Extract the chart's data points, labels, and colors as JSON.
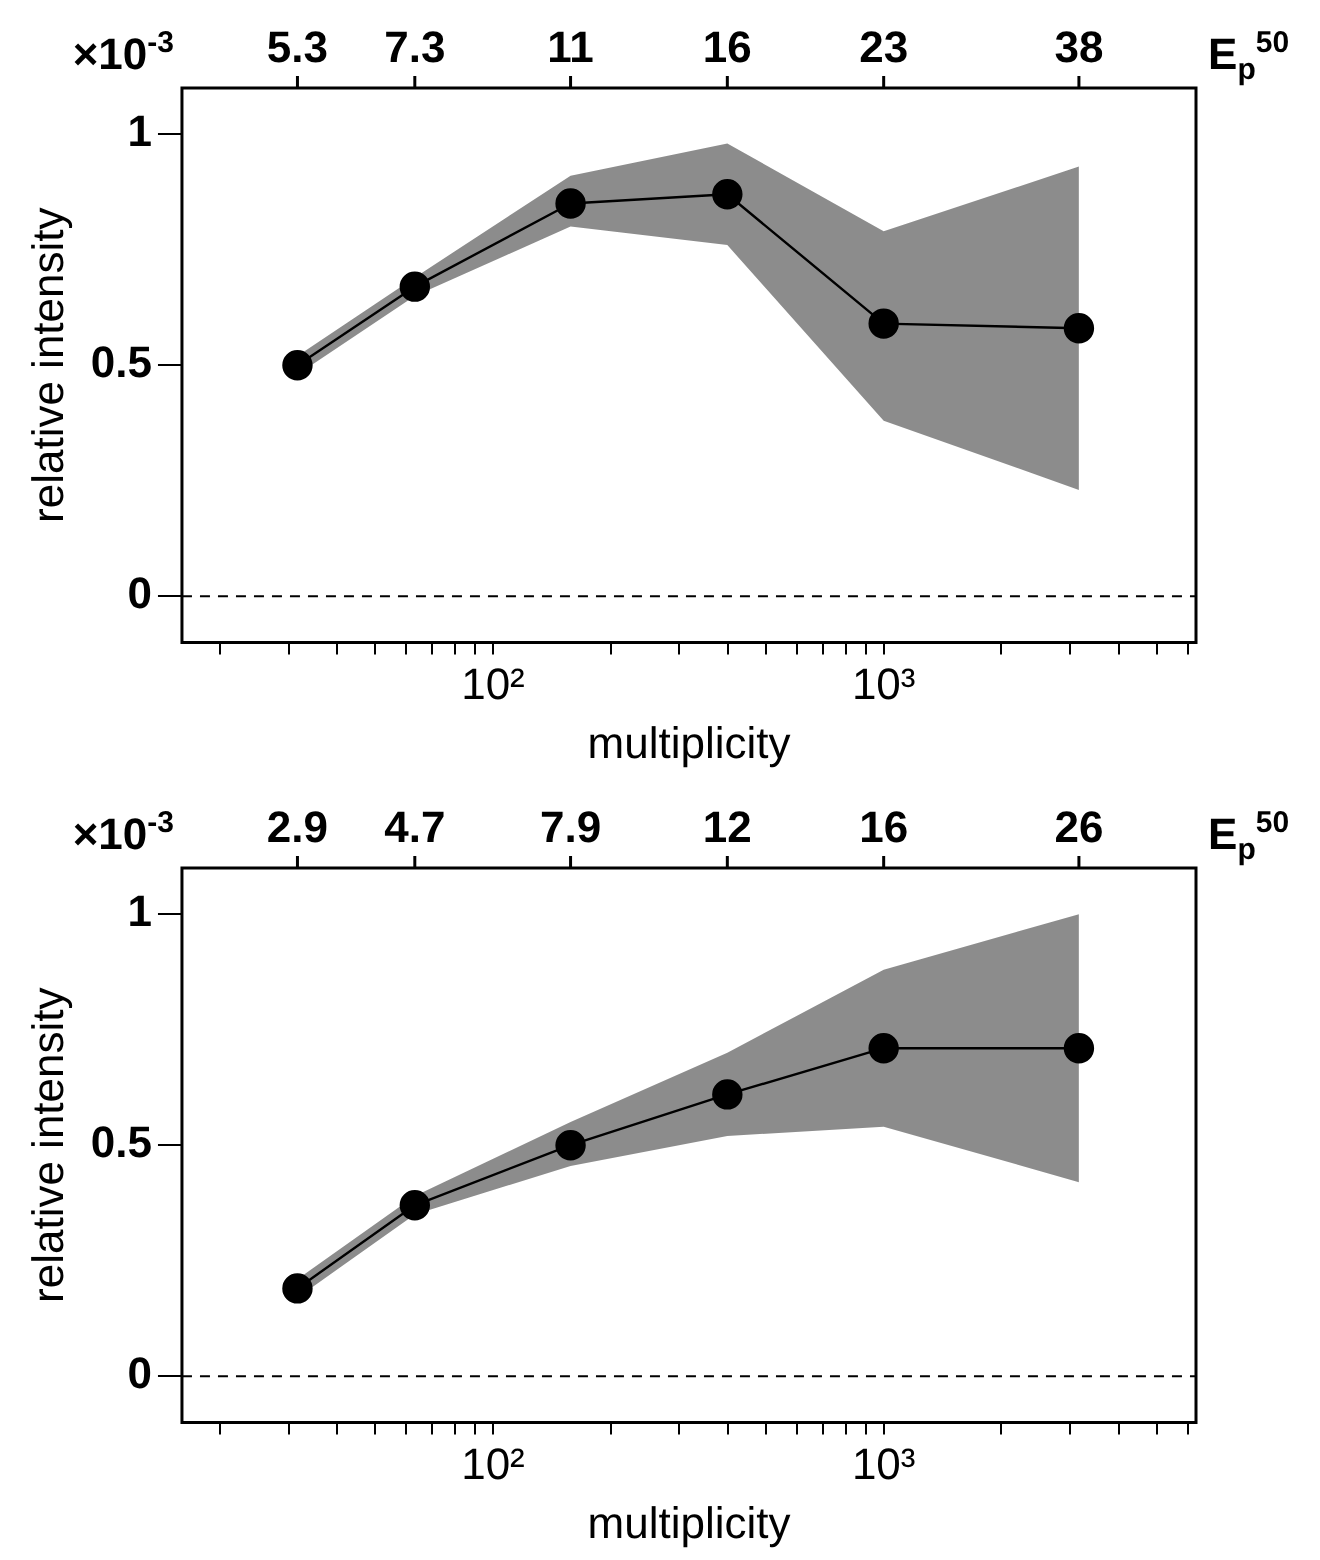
{
  "chart_data": [
    {
      "type": "line",
      "xlabel": "multiplicity",
      "ylabel": "relative intensity",
      "x2label": "E$_{p}$$^{50}$",
      "log": "x",
      "xlim": [
        16,
        6300
      ],
      "xticks": [
        {
          "value": 20,
          "label": null
        },
        {
          "value": 30,
          "label": null
        },
        {
          "value": 40,
          "label": null
        },
        {
          "value": 50,
          "label": null
        },
        {
          "value": 60,
          "label": null
        },
        {
          "value": 70,
          "label": null
        },
        {
          "value": 80,
          "label": null
        },
        {
          "value": 90,
          "label": null
        },
        {
          "value": 100,
          "label": "10²"
        },
        {
          "value": 200,
          "label": null
        },
        {
          "value": 300,
          "label": null
        },
        {
          "value": 400,
          "label": null
        },
        {
          "value": 500,
          "label": null
        },
        {
          "value": 600,
          "label": null
        },
        {
          "value": 700,
          "label": null
        },
        {
          "value": 800,
          "label": null
        },
        {
          "value": 900,
          "label": null
        },
        {
          "value": 1000,
          "label": "10³"
        },
        {
          "value": 2000,
          "label": null
        },
        {
          "value": 3000,
          "label": null
        },
        {
          "value": 4000,
          "label": null
        },
        {
          "value": 5000,
          "label": null
        },
        {
          "value": 6000,
          "label": null
        }
      ],
      "annotations": [
        "×10$^{-3}$",
        {
          "text": "5.3",
          "x": 31.6
        },
        {
          "text": "7.3",
          "x": 63.1
        },
        {
          "text": "11",
          "x": 158
        },
        {
          "text": "16",
          "x": 398
        },
        {
          "text": "23",
          "x": 1000
        },
        {
          "text": "38",
          "x": 3160
        }
      ],
      "ylim": [
        -0.1,
        1.1
      ],
      "yticks": [
        0,
        0.5,
        1
      ],
      "grid": false,
      "legend": false,
      "marker": "circle",
      "line_style": "solid",
      "ref_lines": [
        {
          "axis": "y",
          "value": 0,
          "line_style": "dashed"
        }
      ],
      "x": [
        31.6,
        63.1,
        158,
        398,
        1000,
        3160
      ],
      "series": [
        {
          "color": "#000000",
          "values": [
            0.5,
            0.67,
            0.85,
            0.87,
            0.59,
            0.58
          ],
          "lower": [
            0.48,
            0.65,
            0.8,
            0.76,
            0.38,
            0.23
          ],
          "upper": [
            0.52,
            0.69,
            0.91,
            0.98,
            0.79,
            0.93
          ]
        }
      ]
    },
    {
      "type": "line",
      "xlabel": "multiplicity",
      "ylabel": "relative intensity",
      "x2label": "E$_{p}$$^{50}$",
      "log": "x",
      "xlim": [
        16,
        6300
      ],
      "xticks": [
        {
          "value": 20,
          "label": null
        },
        {
          "value": 30,
          "label": null
        },
        {
          "value": 40,
          "label": null
        },
        {
          "value": 50,
          "label": null
        },
        {
          "value": 60,
          "label": null
        },
        {
          "value": 70,
          "label": null
        },
        {
          "value": 80,
          "label": null
        },
        {
          "value": 90,
          "label": null
        },
        {
          "value": 100,
          "label": "10²"
        },
        {
          "value": 200,
          "label": null
        },
        {
          "value": 300,
          "label": null
        },
        {
          "value": 400,
          "label": null
        },
        {
          "value": 500,
          "label": null
        },
        {
          "value": 600,
          "label": null
        },
        {
          "value": 700,
          "label": null
        },
        {
          "value": 800,
          "label": null
        },
        {
          "value": 900,
          "label": null
        },
        {
          "value": 1000,
          "label": "10³"
        },
        {
          "value": 2000,
          "label": null
        },
        {
          "value": 3000,
          "label": null
        },
        {
          "value": 4000,
          "label": null
        },
        {
          "value": 5000,
          "label": null
        },
        {
          "value": 6000,
          "label": null
        }
      ],
      "annotations": [
        "×10$^{-3}$",
        {
          "text": "2.9",
          "x": 31.6
        },
        {
          "text": "4.7",
          "x": 63.1
        },
        {
          "text": "7.9",
          "x": 158
        },
        {
          "text": "12",
          "x": 398
        },
        {
          "text": "16",
          "x": 1000
        },
        {
          "text": "26",
          "x": 3160
        }
      ],
      "ylim": [
        -0.1,
        1.1
      ],
      "yticks": [
        0,
        0.5,
        1
      ],
      "grid": false,
      "legend": false,
      "marker": "circle",
      "line_style": "solid",
      "ref_lines": [
        {
          "axis": "y",
          "value": 0,
          "line_style": "dashed"
        }
      ],
      "x": [
        31.6,
        63.1,
        158,
        398,
        1000,
        3160
      ],
      "series": [
        {
          "color": "#000000",
          "values": [
            0.19,
            0.37,
            0.5,
            0.61,
            0.71,
            0.71
          ],
          "lower": [
            0.17,
            0.35,
            0.455,
            0.52,
            0.54,
            0.42
          ],
          "upper": [
            0.21,
            0.39,
            0.55,
            0.7,
            0.88,
            1.0
          ]
        }
      ]
    }
  ]
}
